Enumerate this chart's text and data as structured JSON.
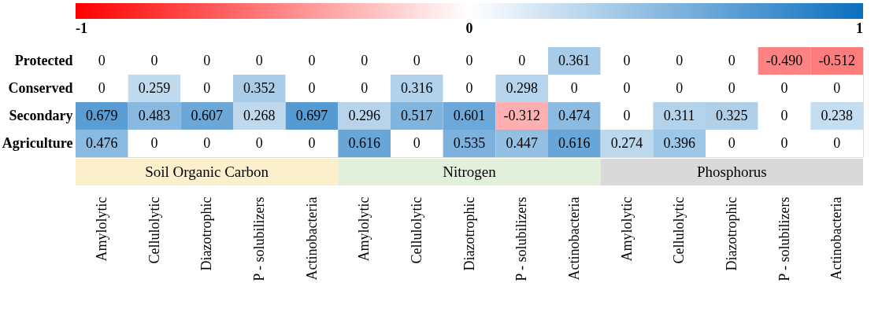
{
  "chart_data": {
    "type": "heatmap",
    "categories": [
      "Amylolytic",
      "Cellulolytic",
      "Diazotrophic",
      "P - solubilizers",
      "Actinobacteria",
      "Amylolytic",
      "Cellulolytic",
      "Diazotrophic",
      "P - solubilizers",
      "Actinobacteria",
      "Amylolytic",
      "Cellulolytic",
      "Diazotrophic",
      "P - solubilizers",
      "Actinobacteria"
    ],
    "y_categories": [
      "Protected",
      "Conserved",
      "Secondary",
      "Agriculture"
    ],
    "cells": [
      [
        0,
        0,
        0,
        0,
        0,
        0,
        0,
        0,
        0,
        0.361,
        0,
        0,
        0,
        -0.49,
        -0.512
      ],
      [
        0,
        0.259,
        0,
        0.352,
        0,
        0,
        0.316,
        0,
        0.298,
        0,
        0,
        0,
        0,
        0,
        0
      ],
      [
        0.679,
        0.483,
        0.607,
        0.268,
        0.697,
        0.296,
        0.517,
        0.601,
        -0.312,
        0.474,
        0,
        0.311,
        0.325,
        0,
        0.238
      ],
      [
        0.476,
        0,
        0,
        0,
        0,
        0.616,
        0,
        0.535,
        0.447,
        0.616,
        0.274,
        0.396,
        0,
        0,
        0
      ]
    ],
    "cell_labels": [
      [
        "0",
        "0",
        "0",
        "0",
        "0",
        "0",
        "0",
        "0",
        "0",
        "0.361",
        "0",
        "0",
        "0",
        "-0.490",
        "-0.512"
      ],
      [
        "0",
        "0.259",
        "0",
        "0.352",
        "0",
        "0",
        "0.316",
        "0",
        "0.298",
        "0",
        "0",
        "0",
        "0",
        "0",
        "0"
      ],
      [
        "0.679",
        "0.483",
        "0.607",
        "0.268",
        "0.697",
        "0.296",
        "0.517",
        "0.601",
        "-0.312",
        "0.474",
        "0",
        "0.311",
        "0.325",
        "0",
        "0.238"
      ],
      [
        "0.476",
        "0",
        "0",
        "0",
        "0",
        "0.616",
        "0",
        "0.535",
        "0.447",
        "0.616",
        "0.274",
        "0.396",
        "0",
        "0",
        "0"
      ]
    ],
    "clim": [
      -1,
      1
    ],
    "cticks": [
      -1,
      0,
      1
    ],
    "annotations": [
      "Soil Organic Carbon",
      "Nitrogen",
      "Phosphorus"
    ]
  }
}
